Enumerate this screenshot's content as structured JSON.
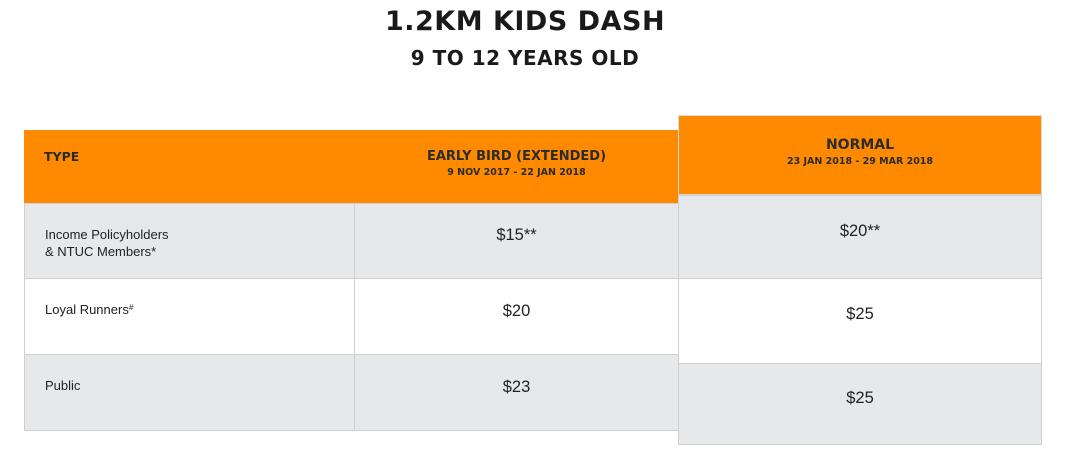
{
  "title": "1.2KM KIDS DASH",
  "subtitle": "9 TO 12 YEARS OLD",
  "table": {
    "header": {
      "type": "TYPE",
      "early_bird": {
        "label": "EARLY BIRD (EXTENDED)",
        "dates": "9 NOV 2017 - 22 JAN 2018"
      },
      "normal": {
        "label": "NORMAL",
        "dates": "23 JAN 2018 - 29 MAR 2018"
      }
    },
    "rows": [
      {
        "type_line1": "Income Policyholders",
        "type_line2": "& NTUC Members*",
        "early_bird": "$15**",
        "normal": "$20**"
      },
      {
        "type_line1": "Loyal Runners",
        "type_sup": "#",
        "early_bird": "$20",
        "normal": "$25"
      },
      {
        "type_line1": "Public",
        "early_bird": "$23",
        "normal": "$25"
      }
    ]
  },
  "colors": {
    "header": "#ff8a00",
    "row_shaded": "#e7e8ea",
    "row_plain": "#ffffff"
  }
}
